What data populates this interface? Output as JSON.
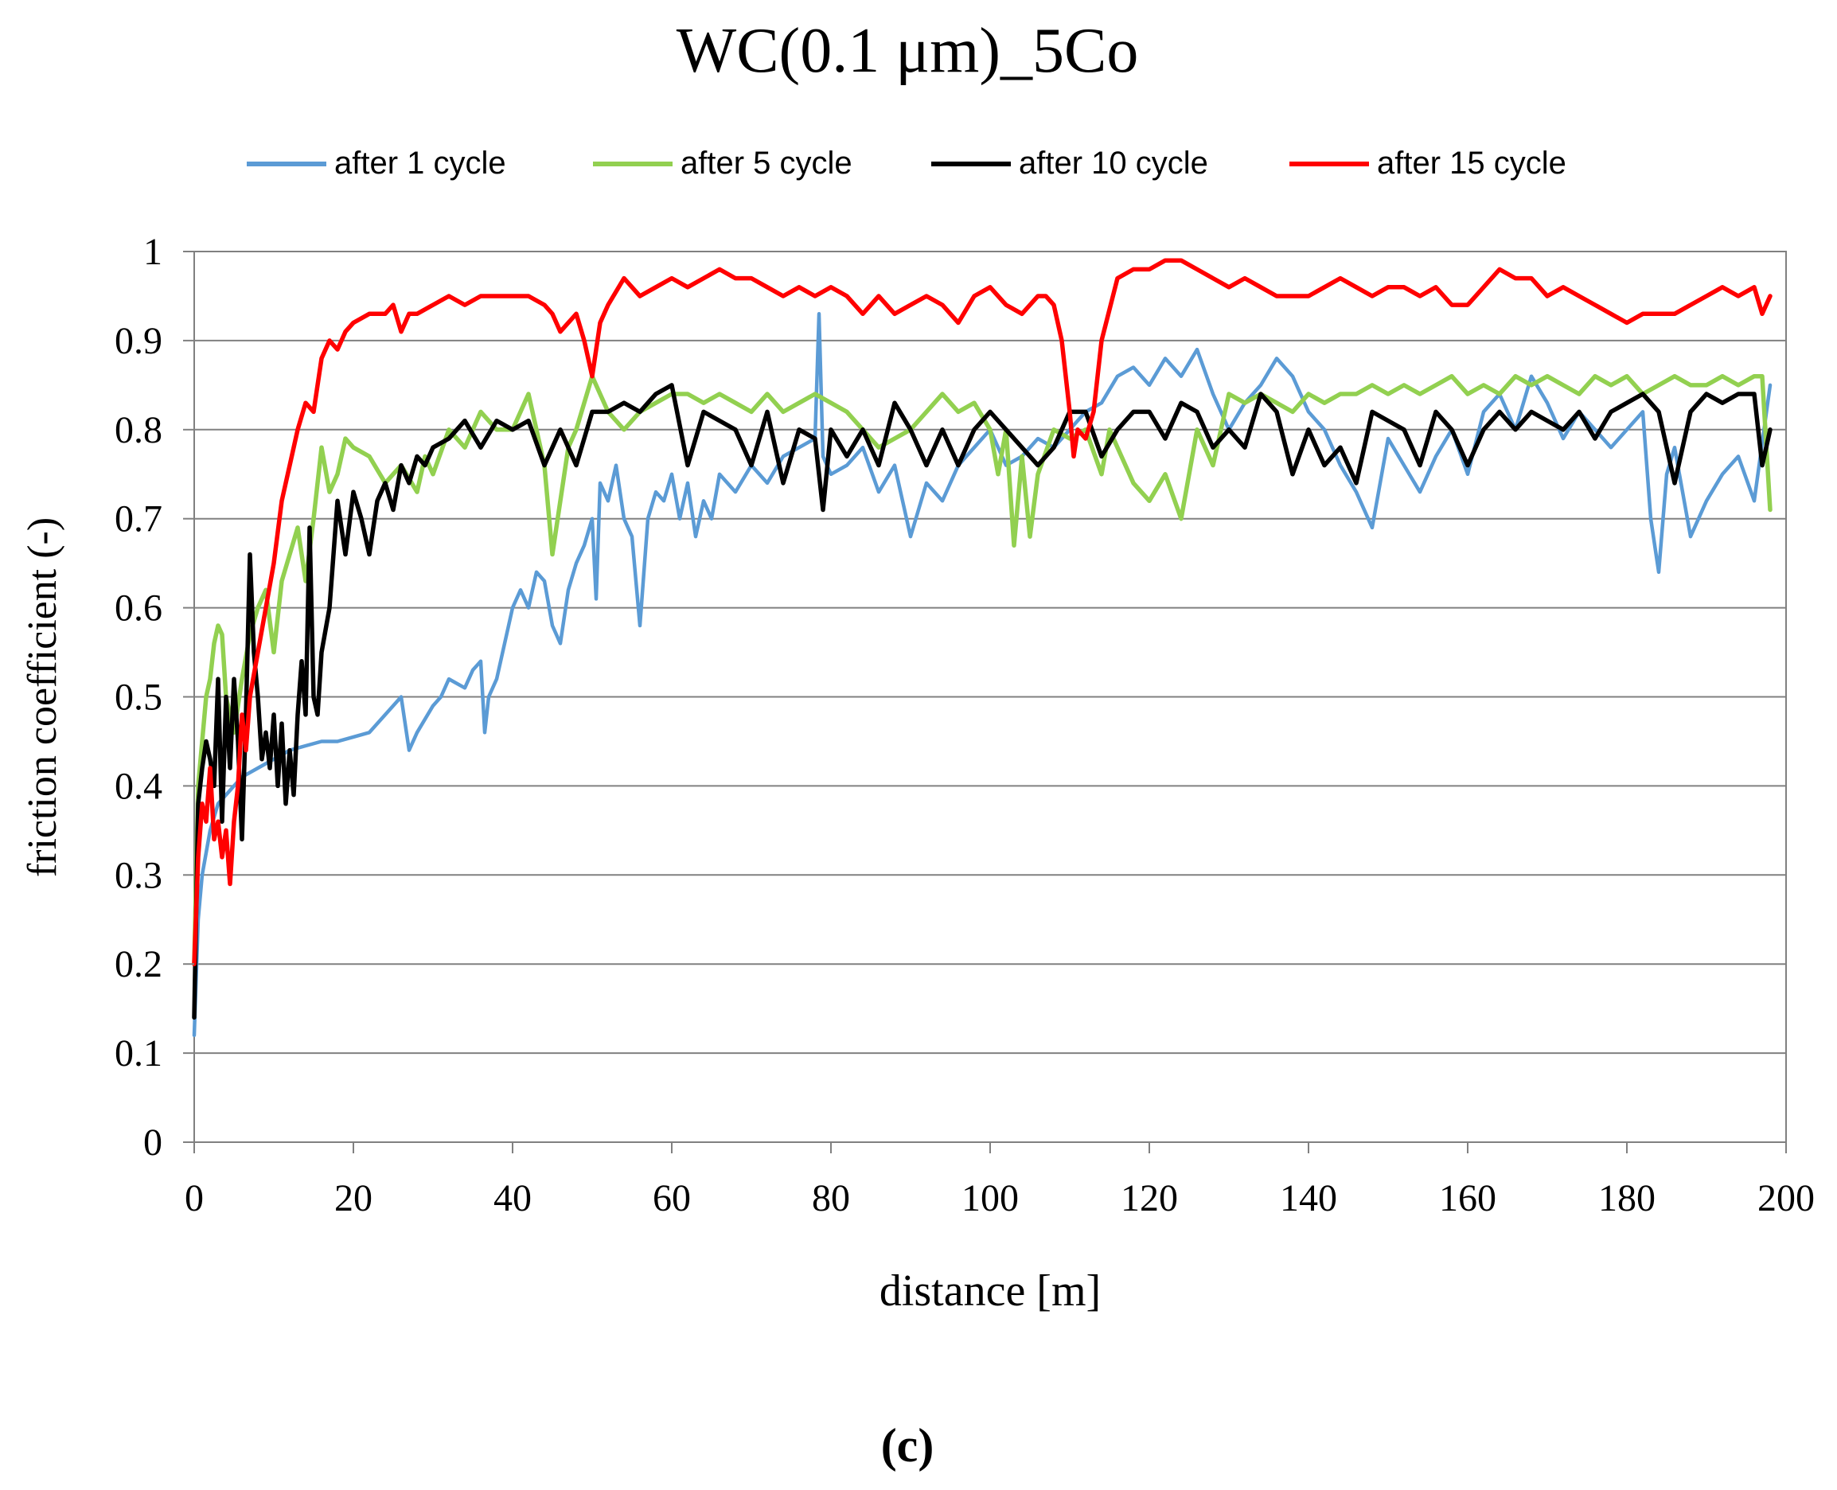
{
  "chart_data": {
    "type": "line",
    "title": "WC(0.1 μm)_5Co",
    "xlabel": "distance [m]",
    "ylabel": "friction coefficient (-)",
    "xlim": [
      0,
      200
    ],
    "ylim": [
      0,
      1
    ],
    "xticks": [
      "0",
      "20",
      "40",
      "60",
      "80",
      "100",
      "120",
      "140",
      "160",
      "180",
      "200"
    ],
    "yticks": [
      "0",
      "0.1",
      "0.2",
      "0.3",
      "0.4",
      "0.5",
      "0.6",
      "0.7",
      "0.8",
      "0.9",
      "1"
    ],
    "grid": "horizontal",
    "legend_position": "top",
    "series": [
      {
        "name": "after 1 cycle",
        "color": "#5b9bd5",
        "x": [
          0,
          0.5,
          1,
          2,
          3,
          4,
          5,
          6,
          8,
          10,
          12,
          14,
          16,
          18,
          20,
          22,
          24,
          26,
          27,
          28,
          30,
          31,
          32,
          34,
          35,
          36,
          36.5,
          37,
          38,
          39,
          40,
          41,
          42,
          43,
          44,
          45,
          46,
          47,
          48,
          49,
          50,
          50.5,
          51,
          52,
          53,
          54,
          55,
          56,
          57,
          58,
          59,
          60,
          61,
          62,
          63,
          64,
          65,
          66,
          68,
          70,
          72,
          74,
          76,
          78,
          78.5,
          79,
          80,
          82,
          84,
          86,
          88,
          90,
          92,
          94,
          96,
          98,
          100,
          102,
          104,
          106,
          108,
          110,
          112,
          114,
          116,
          118,
          120,
          122,
          124,
          126,
          128,
          130,
          132,
          134,
          136,
          138,
          140,
          142,
          144,
          146,
          148,
          150,
          152,
          154,
          156,
          158,
          160,
          162,
          164,
          166,
          168,
          170,
          172,
          174,
          176,
          178,
          180,
          182,
          183,
          184,
          185,
          186,
          188,
          190,
          192,
          194,
          196,
          198
        ],
        "values": [
          0.12,
          0.25,
          0.3,
          0.35,
          0.38,
          0.39,
          0.4,
          0.41,
          0.42,
          0.43,
          0.44,
          0.445,
          0.45,
          0.45,
          0.455,
          0.46,
          0.48,
          0.5,
          0.44,
          0.46,
          0.49,
          0.5,
          0.52,
          0.51,
          0.53,
          0.54,
          0.46,
          0.5,
          0.52,
          0.56,
          0.6,
          0.62,
          0.6,
          0.64,
          0.63,
          0.58,
          0.56,
          0.62,
          0.65,
          0.67,
          0.7,
          0.61,
          0.74,
          0.72,
          0.76,
          0.7,
          0.68,
          0.58,
          0.7,
          0.73,
          0.72,
          0.75,
          0.7,
          0.74,
          0.68,
          0.72,
          0.7,
          0.75,
          0.73,
          0.76,
          0.74,
          0.77,
          0.78,
          0.79,
          0.93,
          0.77,
          0.75,
          0.76,
          0.78,
          0.73,
          0.76,
          0.68,
          0.74,
          0.72,
          0.76,
          0.78,
          0.8,
          0.76,
          0.77,
          0.79,
          0.78,
          0.8,
          0.82,
          0.83,
          0.86,
          0.87,
          0.85,
          0.88,
          0.86,
          0.89,
          0.84,
          0.8,
          0.83,
          0.85,
          0.88,
          0.86,
          0.82,
          0.8,
          0.76,
          0.73,
          0.69,
          0.79,
          0.76,
          0.73,
          0.77,
          0.8,
          0.75,
          0.82,
          0.84,
          0.8,
          0.86,
          0.83,
          0.79,
          0.82,
          0.8,
          0.78,
          0.8,
          0.82,
          0.7,
          0.64,
          0.75,
          0.78,
          0.68,
          0.72,
          0.75,
          0.77,
          0.72,
          0.85
        ]
      },
      {
        "name": "after 5 cycle",
        "color": "#92d050",
        "x": [
          0,
          0.5,
          1,
          1.5,
          2,
          2.5,
          3,
          3.5,
          4,
          5,
          6,
          7,
          8,
          9,
          10,
          11,
          12,
          13,
          14,
          15,
          16,
          17,
          18,
          19,
          20,
          22,
          24,
          26,
          28,
          29,
          30,
          32,
          34,
          36,
          38,
          40,
          42,
          44,
          45,
          46,
          47,
          48,
          50,
          52,
          54,
          56,
          58,
          60,
          62,
          64,
          66,
          68,
          70,
          72,
          74,
          76,
          78,
          80,
          82,
          84,
          86,
          88,
          90,
          92,
          94,
          96,
          98,
          100,
          101,
          102,
          103,
          104,
          105,
          106,
          108,
          110,
          112,
          114,
          115,
          116,
          118,
          120,
          122,
          124,
          126,
          128,
          130,
          132,
          134,
          136,
          138,
          140,
          142,
          144,
          146,
          148,
          150,
          152,
          154,
          156,
          158,
          160,
          162,
          164,
          166,
          168,
          170,
          172,
          174,
          176,
          178,
          180,
          182,
          184,
          186,
          188,
          190,
          192,
          194,
          196,
          197,
          198
        ],
        "values": [
          0.2,
          0.4,
          0.45,
          0.5,
          0.52,
          0.56,
          0.58,
          0.57,
          0.5,
          0.46,
          0.52,
          0.57,
          0.6,
          0.62,
          0.55,
          0.63,
          0.66,
          0.69,
          0.63,
          0.7,
          0.78,
          0.73,
          0.75,
          0.79,
          0.78,
          0.77,
          0.74,
          0.76,
          0.73,
          0.77,
          0.75,
          0.8,
          0.78,
          0.82,
          0.8,
          0.8,
          0.84,
          0.76,
          0.66,
          0.72,
          0.78,
          0.8,
          0.86,
          0.82,
          0.8,
          0.82,
          0.83,
          0.84,
          0.84,
          0.83,
          0.84,
          0.83,
          0.82,
          0.84,
          0.82,
          0.83,
          0.84,
          0.83,
          0.82,
          0.8,
          0.78,
          0.79,
          0.8,
          0.82,
          0.84,
          0.82,
          0.83,
          0.8,
          0.75,
          0.8,
          0.67,
          0.77,
          0.68,
          0.75,
          0.8,
          0.79,
          0.8,
          0.75,
          0.8,
          0.78,
          0.74,
          0.72,
          0.75,
          0.7,
          0.8,
          0.76,
          0.84,
          0.83,
          0.84,
          0.83,
          0.82,
          0.84,
          0.83,
          0.84,
          0.84,
          0.85,
          0.84,
          0.85,
          0.84,
          0.85,
          0.86,
          0.84,
          0.85,
          0.84,
          0.86,
          0.85,
          0.86,
          0.85,
          0.84,
          0.86,
          0.85,
          0.86,
          0.84,
          0.85,
          0.86,
          0.85,
          0.85,
          0.86,
          0.85,
          0.86,
          0.86,
          0.71
        ]
      },
      {
        "name": "after 10 cycle",
        "color": "#000000",
        "x": [
          0,
          0.5,
          1,
          1.5,
          2,
          2.5,
          3,
          3.5,
          4,
          4.5,
          5,
          5.5,
          6,
          6.5,
          7,
          7.5,
          8,
          8.5,
          9,
          9.5,
          10,
          10.5,
          11,
          11.5,
          12,
          12.5,
          13,
          13.5,
          14,
          14.5,
          15,
          15.5,
          16,
          17,
          18,
          19,
          20,
          21,
          22,
          23,
          24,
          25,
          26,
          27,
          28,
          29,
          30,
          32,
          34,
          36,
          38,
          40,
          42,
          44,
          46,
          48,
          50,
          52,
          54,
          56,
          58,
          60,
          62,
          64,
          66,
          68,
          70,
          72,
          74,
          76,
          78,
          79,
          80,
          82,
          84,
          86,
          88,
          90,
          92,
          94,
          96,
          98,
          100,
          102,
          104,
          106,
          108,
          110,
          112,
          114,
          116,
          118,
          120,
          122,
          124,
          126,
          128,
          130,
          132,
          134,
          136,
          138,
          140,
          142,
          144,
          146,
          148,
          150,
          152,
          154,
          156,
          158,
          160,
          162,
          164,
          166,
          168,
          170,
          172,
          174,
          176,
          178,
          180,
          182,
          184,
          186,
          188,
          190,
          192,
          194,
          196,
          197,
          198
        ],
        "values": [
          0.14,
          0.38,
          0.42,
          0.45,
          0.43,
          0.4,
          0.52,
          0.36,
          0.5,
          0.42,
          0.52,
          0.45,
          0.34,
          0.48,
          0.66,
          0.55,
          0.5,
          0.43,
          0.46,
          0.42,
          0.48,
          0.4,
          0.47,
          0.38,
          0.44,
          0.39,
          0.48,
          0.54,
          0.48,
          0.69,
          0.5,
          0.48,
          0.55,
          0.6,
          0.72,
          0.66,
          0.73,
          0.7,
          0.66,
          0.72,
          0.74,
          0.71,
          0.76,
          0.74,
          0.77,
          0.76,
          0.78,
          0.79,
          0.81,
          0.78,
          0.81,
          0.8,
          0.81,
          0.76,
          0.8,
          0.76,
          0.82,
          0.82,
          0.83,
          0.82,
          0.84,
          0.85,
          0.76,
          0.82,
          0.81,
          0.8,
          0.76,
          0.82,
          0.74,
          0.8,
          0.79,
          0.71,
          0.8,
          0.77,
          0.8,
          0.76,
          0.83,
          0.8,
          0.76,
          0.8,
          0.76,
          0.8,
          0.82,
          0.8,
          0.78,
          0.76,
          0.78,
          0.82,
          0.82,
          0.77,
          0.8,
          0.82,
          0.82,
          0.79,
          0.83,
          0.82,
          0.78,
          0.8,
          0.78,
          0.84,
          0.82,
          0.75,
          0.8,
          0.76,
          0.78,
          0.74,
          0.82,
          0.81,
          0.8,
          0.76,
          0.82,
          0.8,
          0.76,
          0.8,
          0.82,
          0.8,
          0.82,
          0.81,
          0.8,
          0.82,
          0.79,
          0.82,
          0.83,
          0.84,
          0.82,
          0.74,
          0.82,
          0.84,
          0.83,
          0.84,
          0.84,
          0.76,
          0.8
        ]
      },
      {
        "name": "after 15 cycle",
        "color": "#ff0000",
        "x": [
          0,
          0.5,
          1,
          1.5,
          2,
          2.5,
          3,
          3.5,
          4,
          4.5,
          5,
          5.5,
          6,
          6.5,
          7,
          8,
          9,
          10,
          11,
          12,
          13,
          14,
          15,
          16,
          17,
          18,
          19,
          20,
          22,
          24,
          25,
          26,
          27,
          28,
          30,
          32,
          34,
          36,
          38,
          40,
          42,
          44,
          45,
          46,
          48,
          49,
          50,
          50.5,
          51,
          52,
          54,
          56,
          58,
          60,
          62,
          64,
          66,
          68,
          70,
          72,
          74,
          76,
          78,
          80,
          82,
          84,
          86,
          88,
          90,
          92,
          94,
          96,
          98,
          100,
          102,
          104,
          106,
          107,
          108,
          109,
          110,
          110.5,
          111,
          112,
          113,
          114,
          116,
          118,
          120,
          122,
          124,
          126,
          128,
          130,
          132,
          134,
          136,
          138,
          140,
          142,
          144,
          146,
          148,
          150,
          152,
          154,
          156,
          158,
          160,
          162,
          164,
          166,
          168,
          170,
          172,
          174,
          176,
          178,
          180,
          182,
          184,
          186,
          188,
          190,
          192,
          194,
          196,
          197,
          198
        ],
        "values": [
          0.2,
          0.32,
          0.38,
          0.36,
          0.42,
          0.34,
          0.36,
          0.32,
          0.35,
          0.29,
          0.36,
          0.4,
          0.48,
          0.44,
          0.5,
          0.55,
          0.6,
          0.65,
          0.72,
          0.76,
          0.8,
          0.83,
          0.82,
          0.88,
          0.9,
          0.89,
          0.91,
          0.92,
          0.93,
          0.93,
          0.94,
          0.91,
          0.93,
          0.93,
          0.94,
          0.95,
          0.94,
          0.95,
          0.95,
          0.95,
          0.95,
          0.94,
          0.93,
          0.91,
          0.93,
          0.9,
          0.86,
          0.89,
          0.92,
          0.94,
          0.97,
          0.95,
          0.96,
          0.97,
          0.96,
          0.97,
          0.98,
          0.97,
          0.97,
          0.96,
          0.95,
          0.96,
          0.95,
          0.96,
          0.95,
          0.93,
          0.95,
          0.93,
          0.94,
          0.95,
          0.94,
          0.92,
          0.95,
          0.96,
          0.94,
          0.93,
          0.95,
          0.95,
          0.94,
          0.9,
          0.82,
          0.77,
          0.8,
          0.79,
          0.82,
          0.9,
          0.97,
          0.98,
          0.98,
          0.99,
          0.99,
          0.98,
          0.97,
          0.96,
          0.97,
          0.96,
          0.95,
          0.95,
          0.95,
          0.96,
          0.97,
          0.96,
          0.95,
          0.96,
          0.96,
          0.95,
          0.96,
          0.94,
          0.94,
          0.96,
          0.98,
          0.97,
          0.97,
          0.95,
          0.96,
          0.95,
          0.94,
          0.93,
          0.92,
          0.93,
          0.93,
          0.93,
          0.94,
          0.95,
          0.96,
          0.95,
          0.96,
          0.93,
          0.95
        ]
      }
    ]
  },
  "caption": "(c)"
}
